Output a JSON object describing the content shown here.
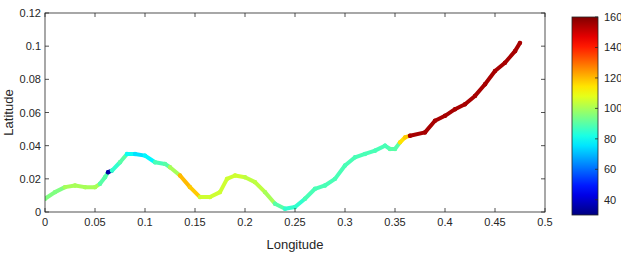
{
  "chart_data": {
    "type": "line",
    "x_label": "Longitude",
    "y_label": "Latitude",
    "xlim": [
      0,
      0.5
    ],
    "xticks": [
      0,
      0.05,
      0.1,
      0.15,
      0.2,
      0.25,
      0.3,
      0.35,
      0.4,
      0.45,
      0.5
    ],
    "ylim": [
      0,
      0.12
    ],
    "yticks": [
      0,
      0.02,
      0.04,
      0.06,
      0.08,
      0.1,
      0.12
    ],
    "clim": [
      30,
      160
    ],
    "cticks": [
      40,
      60,
      80,
      100,
      120,
      140,
      160
    ],
    "grid": false,
    "series": [
      {
        "marker": "o",
        "line_style": "solid",
        "x": [
          0,
          0.01,
          0.02,
          0.03,
          0.04,
          0.05,
          0.055,
          0.06,
          0.063,
          0.067,
          0.075,
          0.082,
          0.09,
          0.1,
          0.11,
          0.12,
          0.125,
          0.135,
          0.145,
          0.155,
          0.165,
          0.175,
          0.182,
          0.19,
          0.2,
          0.21,
          0.22,
          0.23,
          0.24,
          0.25,
          0.26,
          0.27,
          0.28,
          0.29,
          0.3,
          0.31,
          0.32,
          0.33,
          0.34,
          0.345,
          0.35,
          0.355,
          0.36,
          0.365,
          0.38,
          0.39,
          0.4,
          0.41,
          0.42,
          0.43,
          0.44,
          0.45,
          0.46,
          0.47,
          0.475
        ],
        "values": [
          0.008,
          0.012,
          0.015,
          0.016,
          0.015,
          0.015,
          0.017,
          0.021,
          0.024,
          0.025,
          0.03,
          0.035,
          0.035,
          0.034,
          0.03,
          0.029,
          0.027,
          0.022,
          0.015,
          0.009,
          0.009,
          0.012,
          0.02,
          0.022,
          0.021,
          0.018,
          0.012,
          0.005,
          0.002,
          0.003,
          0.008,
          0.014,
          0.016,
          0.02,
          0.028,
          0.033,
          0.035,
          0.037,
          0.04,
          0.038,
          0.038,
          0.042,
          0.045,
          0.046,
          0.048,
          0.055,
          0.058,
          0.062,
          0.065,
          0.07,
          0.077,
          0.085,
          0.09,
          0.097,
          0.102
        ],
        "color_values": [
          95,
          95,
          100,
          100,
          100,
          100,
          90,
          90,
          35,
          85,
          90,
          80,
          75,
          78,
          88,
          90,
          100,
          120,
          118,
          105,
          105,
          105,
          105,
          105,
          103,
          103,
          100,
          90,
          85,
          85,
          88,
          88,
          88,
          88,
          88,
          88,
          88,
          88,
          88,
          90,
          90,
          115,
          118,
          155,
          155,
          155,
          155,
          155,
          155,
          155,
          155,
          155,
          155,
          155,
          155
        ]
      }
    ]
  }
}
